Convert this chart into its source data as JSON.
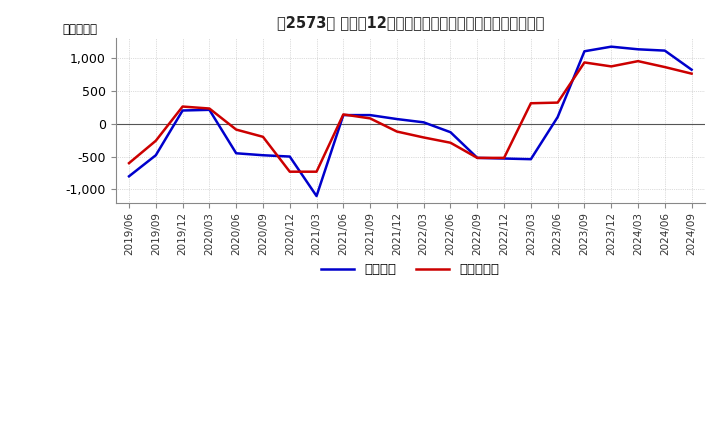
{
  "title": "、2573、 利益だ12か月移動合計の対前年同期増減額の推移",
  "ylabel": "（百万円）",
  "ylim": [
    -1200,
    1300
  ],
  "yticks": [
    -1000,
    -500,
    0,
    500,
    1000
  ],
  "background_color": "#ffffff",
  "grid_color": "#aaaaaa",
  "line1_color": "#0000cc",
  "line2_color": "#cc0000",
  "legend_labels": [
    "経常利益",
    "当期純利益"
  ],
  "dates": [
    "2019/06",
    "2019/09",
    "2019/12",
    "2020/03",
    "2020/06",
    "2020/09",
    "2020/12",
    "2021/03",
    "2021/06",
    "2021/09",
    "2021/12",
    "2022/03",
    "2022/06",
    "2022/09",
    "2022/12",
    "2023/03",
    "2023/06",
    "2023/09",
    "2023/12",
    "2024/03",
    "2024/06",
    "2024/09"
  ],
  "keijo_rieki": [
    -800,
    -480,
    200,
    210,
    -450,
    -480,
    -500,
    -1100,
    130,
    130,
    70,
    20,
    -130,
    -520,
    -530,
    -540,
    100,
    1100,
    1170,
    1130,
    1110,
    820
  ],
  "touki_jun_rieki": [
    -600,
    -260,
    260,
    230,
    -90,
    -200,
    -730,
    -730,
    140,
    80,
    -120,
    -210,
    -290,
    -520,
    -520,
    310,
    320,
    930,
    870,
    950,
    860,
    760
  ]
}
